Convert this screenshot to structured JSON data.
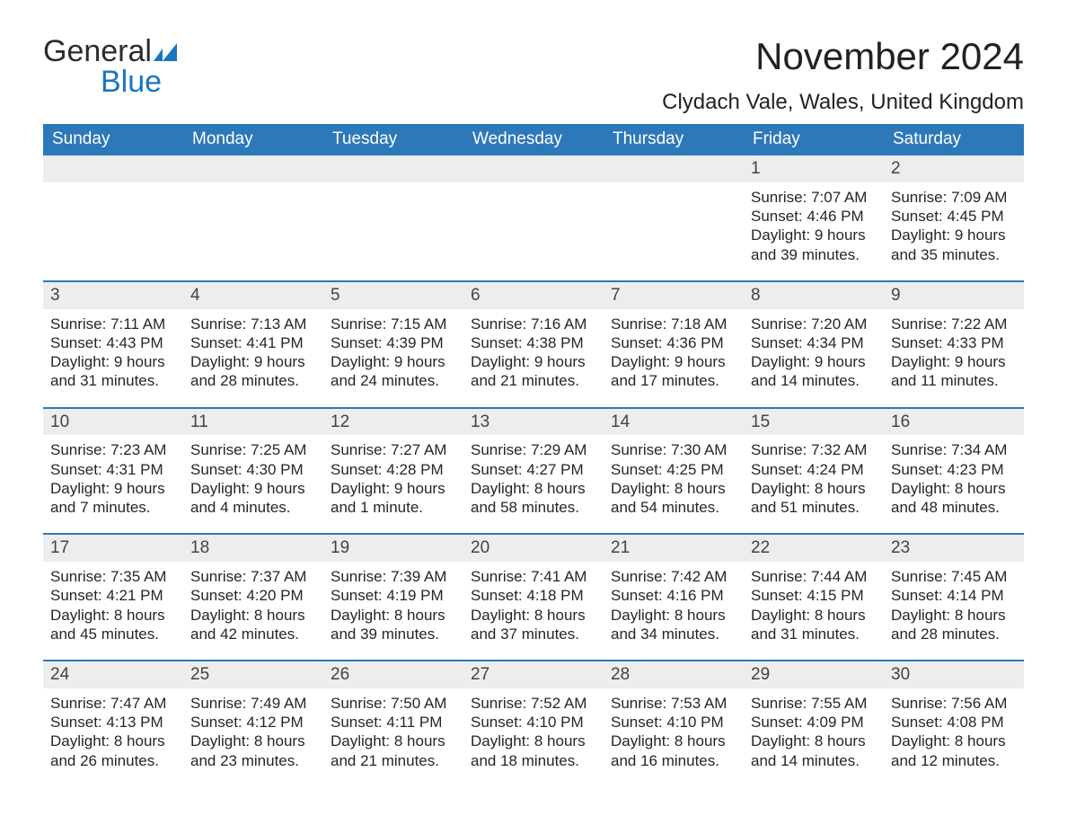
{
  "brand": {
    "word1": "General",
    "word2": "Blue",
    "word1_color": "#2b2b2b",
    "word2_color": "#1976c1",
    "mark_color": "#1976c1"
  },
  "title": "November 2024",
  "location": "Clydach Vale, Wales, United Kingdom",
  "colors": {
    "header_bg": "#2d78b9",
    "header_text": "#ffffff",
    "day_number_bg": "#eceded",
    "day_number_text": "#434343",
    "body_text": "#262626",
    "week_divider": "#2d78b9",
    "page_bg": "#ffffff"
  },
  "typography": {
    "month_title_pt": 42,
    "location_pt": 24,
    "weekday_pt": 19,
    "day_number_pt": 19,
    "body_pt": 17
  },
  "weekdays": [
    "Sunday",
    "Monday",
    "Tuesday",
    "Wednesday",
    "Thursday",
    "Friday",
    "Saturday"
  ],
  "weeks": [
    [
      null,
      null,
      null,
      null,
      null,
      {
        "num": "1",
        "sunrise": "Sunrise: 7:07 AM",
        "sunset": "Sunset: 4:46 PM",
        "daylight1": "Daylight: 9 hours",
        "daylight2": "and 39 minutes."
      },
      {
        "num": "2",
        "sunrise": "Sunrise: 7:09 AM",
        "sunset": "Sunset: 4:45 PM",
        "daylight1": "Daylight: 9 hours",
        "daylight2": "and 35 minutes."
      }
    ],
    [
      {
        "num": "3",
        "sunrise": "Sunrise: 7:11 AM",
        "sunset": "Sunset: 4:43 PM",
        "daylight1": "Daylight: 9 hours",
        "daylight2": "and 31 minutes."
      },
      {
        "num": "4",
        "sunrise": "Sunrise: 7:13 AM",
        "sunset": "Sunset: 4:41 PM",
        "daylight1": "Daylight: 9 hours",
        "daylight2": "and 28 minutes."
      },
      {
        "num": "5",
        "sunrise": "Sunrise: 7:15 AM",
        "sunset": "Sunset: 4:39 PM",
        "daylight1": "Daylight: 9 hours",
        "daylight2": "and 24 minutes."
      },
      {
        "num": "6",
        "sunrise": "Sunrise: 7:16 AM",
        "sunset": "Sunset: 4:38 PM",
        "daylight1": "Daylight: 9 hours",
        "daylight2": "and 21 minutes."
      },
      {
        "num": "7",
        "sunrise": "Sunrise: 7:18 AM",
        "sunset": "Sunset: 4:36 PM",
        "daylight1": "Daylight: 9 hours",
        "daylight2": "and 17 minutes."
      },
      {
        "num": "8",
        "sunrise": "Sunrise: 7:20 AM",
        "sunset": "Sunset: 4:34 PM",
        "daylight1": "Daylight: 9 hours",
        "daylight2": "and 14 minutes."
      },
      {
        "num": "9",
        "sunrise": "Sunrise: 7:22 AM",
        "sunset": "Sunset: 4:33 PM",
        "daylight1": "Daylight: 9 hours",
        "daylight2": "and 11 minutes."
      }
    ],
    [
      {
        "num": "10",
        "sunrise": "Sunrise: 7:23 AM",
        "sunset": "Sunset: 4:31 PM",
        "daylight1": "Daylight: 9 hours",
        "daylight2": "and 7 minutes."
      },
      {
        "num": "11",
        "sunrise": "Sunrise: 7:25 AM",
        "sunset": "Sunset: 4:30 PM",
        "daylight1": "Daylight: 9 hours",
        "daylight2": "and 4 minutes."
      },
      {
        "num": "12",
        "sunrise": "Sunrise: 7:27 AM",
        "sunset": "Sunset: 4:28 PM",
        "daylight1": "Daylight: 9 hours",
        "daylight2": "and 1 minute."
      },
      {
        "num": "13",
        "sunrise": "Sunrise: 7:29 AM",
        "sunset": "Sunset: 4:27 PM",
        "daylight1": "Daylight: 8 hours",
        "daylight2": "and 58 minutes."
      },
      {
        "num": "14",
        "sunrise": "Sunrise: 7:30 AM",
        "sunset": "Sunset: 4:25 PM",
        "daylight1": "Daylight: 8 hours",
        "daylight2": "and 54 minutes."
      },
      {
        "num": "15",
        "sunrise": "Sunrise: 7:32 AM",
        "sunset": "Sunset: 4:24 PM",
        "daylight1": "Daylight: 8 hours",
        "daylight2": "and 51 minutes."
      },
      {
        "num": "16",
        "sunrise": "Sunrise: 7:34 AM",
        "sunset": "Sunset: 4:23 PM",
        "daylight1": "Daylight: 8 hours",
        "daylight2": "and 48 minutes."
      }
    ],
    [
      {
        "num": "17",
        "sunrise": "Sunrise: 7:35 AM",
        "sunset": "Sunset: 4:21 PM",
        "daylight1": "Daylight: 8 hours",
        "daylight2": "and 45 minutes."
      },
      {
        "num": "18",
        "sunrise": "Sunrise: 7:37 AM",
        "sunset": "Sunset: 4:20 PM",
        "daylight1": "Daylight: 8 hours",
        "daylight2": "and 42 minutes."
      },
      {
        "num": "19",
        "sunrise": "Sunrise: 7:39 AM",
        "sunset": "Sunset: 4:19 PM",
        "daylight1": "Daylight: 8 hours",
        "daylight2": "and 39 minutes."
      },
      {
        "num": "20",
        "sunrise": "Sunrise: 7:41 AM",
        "sunset": "Sunset: 4:18 PM",
        "daylight1": "Daylight: 8 hours",
        "daylight2": "and 37 minutes."
      },
      {
        "num": "21",
        "sunrise": "Sunrise: 7:42 AM",
        "sunset": "Sunset: 4:16 PM",
        "daylight1": "Daylight: 8 hours",
        "daylight2": "and 34 minutes."
      },
      {
        "num": "22",
        "sunrise": "Sunrise: 7:44 AM",
        "sunset": "Sunset: 4:15 PM",
        "daylight1": "Daylight: 8 hours",
        "daylight2": "and 31 minutes."
      },
      {
        "num": "23",
        "sunrise": "Sunrise: 7:45 AM",
        "sunset": "Sunset: 4:14 PM",
        "daylight1": "Daylight: 8 hours",
        "daylight2": "and 28 minutes."
      }
    ],
    [
      {
        "num": "24",
        "sunrise": "Sunrise: 7:47 AM",
        "sunset": "Sunset: 4:13 PM",
        "daylight1": "Daylight: 8 hours",
        "daylight2": "and 26 minutes."
      },
      {
        "num": "25",
        "sunrise": "Sunrise: 7:49 AM",
        "sunset": "Sunset: 4:12 PM",
        "daylight1": "Daylight: 8 hours",
        "daylight2": "and 23 minutes."
      },
      {
        "num": "26",
        "sunrise": "Sunrise: 7:50 AM",
        "sunset": "Sunset: 4:11 PM",
        "daylight1": "Daylight: 8 hours",
        "daylight2": "and 21 minutes."
      },
      {
        "num": "27",
        "sunrise": "Sunrise: 7:52 AM",
        "sunset": "Sunset: 4:10 PM",
        "daylight1": "Daylight: 8 hours",
        "daylight2": "and 18 minutes."
      },
      {
        "num": "28",
        "sunrise": "Sunrise: 7:53 AM",
        "sunset": "Sunset: 4:10 PM",
        "daylight1": "Daylight: 8 hours",
        "daylight2": "and 16 minutes."
      },
      {
        "num": "29",
        "sunrise": "Sunrise: 7:55 AM",
        "sunset": "Sunset: 4:09 PM",
        "daylight1": "Daylight: 8 hours",
        "daylight2": "and 14 minutes."
      },
      {
        "num": "30",
        "sunrise": "Sunrise: 7:56 AM",
        "sunset": "Sunset: 4:08 PM",
        "daylight1": "Daylight: 8 hours",
        "daylight2": "and 12 minutes."
      }
    ]
  ]
}
